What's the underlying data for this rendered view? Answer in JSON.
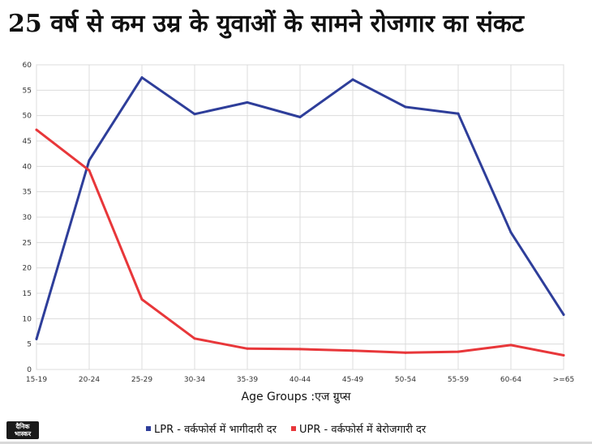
{
  "title": "25 वर्ष से कम उम्र के युवाओं के सामने रोजगार का संकट",
  "logo": {
    "line1": "दैनिक",
    "line2": "भास्कर"
  },
  "chart_data": {
    "type": "line",
    "categories": [
      "15-19",
      "20-24",
      "25-29",
      "30-34",
      "35-39",
      "40-44",
      "45-49",
      "50-54",
      "55-59",
      "60-64",
      ">=65"
    ],
    "series": [
      {
        "name": "LPR - वर्कफोर्स में भागीदारी दर",
        "color": "#2e3e9a",
        "values": [
          6.0,
          41.2,
          57.5,
          50.3,
          52.6,
          49.7,
          57.1,
          51.7,
          50.4,
          27.0,
          10.8
        ]
      },
      {
        "name": "UPR - वर्कफोर्स में बेरोजगारी दर",
        "color": "#e8373a",
        "values": [
          47.2,
          39.2,
          13.8,
          6.1,
          4.1,
          4.0,
          3.7,
          3.3,
          3.5,
          4.8,
          2.8
        ]
      }
    ],
    "xlabel": "Age Groups :एज ग्रुप्स",
    "ylabel": "",
    "ylim": [
      0,
      60
    ],
    "yticks": [
      0,
      5,
      10,
      15,
      20,
      25,
      30,
      35,
      40,
      45,
      50,
      55,
      60
    ],
    "grid": true,
    "legend_position": "bottom"
  }
}
